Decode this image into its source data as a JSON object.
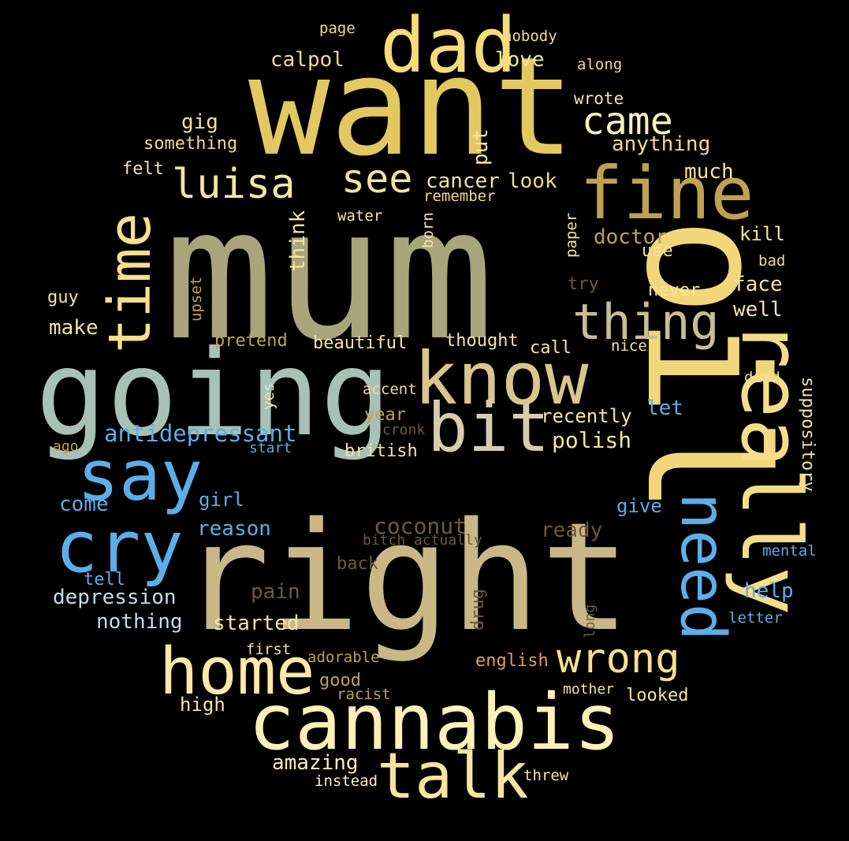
{
  "colors": {
    "background": "#000000",
    "sage": "#a8a57c",
    "gold": "#e2c860",
    "pale_yellow": "#f6e4a0",
    "mint": "#a7c1b7",
    "tan": "#c9b886",
    "blue": "#5caee8",
    "light_blue": "#c4dcef",
    "brown": "#6e5a3a",
    "orange": "#e39a5a"
  },
  "words": [
    {
      "text": "mum",
      "color": "#a8a57c"
    },
    {
      "text": "want",
      "color": "#e2c860"
    },
    {
      "text": "right",
      "color": "#c9b886"
    },
    {
      "text": "going",
      "color": "#a7c1b7"
    },
    {
      "text": "oil",
      "color": "#f2d67a"
    },
    {
      "text": "know",
      "color": "#d9c68c"
    },
    {
      "text": "cannabis",
      "color": "#fff0b8"
    },
    {
      "text": "really",
      "color": "#f3dd88"
    },
    {
      "text": "dad",
      "color": "#f6dc78"
    },
    {
      "text": "fine",
      "color": "#bfa152"
    },
    {
      "text": "cry",
      "color": "#5caee8"
    },
    {
      "text": "bit",
      "color": "#d8ccb0"
    },
    {
      "text": "say",
      "color": "#5caee8"
    },
    {
      "text": "home",
      "color": "#ffe8a8"
    },
    {
      "text": "talk",
      "color": "#f6e4a0"
    },
    {
      "text": "need",
      "color": "#5caee8"
    },
    {
      "text": "time",
      "color": "#f6e08c"
    },
    {
      "text": "thing",
      "color": "#c9bd93"
    },
    {
      "text": "wrong",
      "color": "#f6e08c"
    },
    {
      "text": "luisa",
      "color": "#f6e4a0"
    },
    {
      "text": "came",
      "color": "#fff0b8"
    },
    {
      "text": "see",
      "color": "#f6e4a0"
    },
    {
      "text": "antidepressant",
      "color": "#5caee8"
    },
    {
      "text": "calpol",
      "color": "#f2da92"
    },
    {
      "text": "love",
      "color": "#f6e4a0"
    },
    {
      "text": "anything",
      "color": "#f2da92"
    },
    {
      "text": "cancer",
      "color": "#f6e4a0"
    },
    {
      "text": "look",
      "color": "#f2da92"
    },
    {
      "text": "much",
      "color": "#f6e4a0"
    },
    {
      "text": "gig",
      "color": "#f6e4a0"
    },
    {
      "text": "something",
      "color": "#f2da92"
    },
    {
      "text": "felt",
      "color": "#f6e4a0"
    },
    {
      "text": "put",
      "color": "#f6e4a0"
    },
    {
      "text": "page",
      "color": "#f2da92"
    },
    {
      "text": "nobody",
      "color": "#f2da92"
    },
    {
      "text": "along",
      "color": "#f2da92"
    },
    {
      "text": "wrote",
      "color": "#f6e4a0"
    },
    {
      "text": "remember",
      "color": "#f2da92"
    },
    {
      "text": "water",
      "color": "#f6e4a0"
    },
    {
      "text": "born",
      "color": "#f6e4a0"
    },
    {
      "text": "paper",
      "color": "#f6e4a0"
    },
    {
      "text": "doctor",
      "color": "#bfa152"
    },
    {
      "text": "kill",
      "color": "#f6e4a0"
    },
    {
      "text": "use",
      "color": "#f6e4a0"
    },
    {
      "text": "bad",
      "color": "#f2da92"
    },
    {
      "text": "think",
      "color": "#f6e4a0"
    },
    {
      "text": "upset",
      "color": "#bfa152"
    },
    {
      "text": "try",
      "color": "#6e5a3a"
    },
    {
      "text": "never",
      "color": "#f6e4a0"
    },
    {
      "text": "face",
      "color": "#f6e4a0"
    },
    {
      "text": "well",
      "color": "#f6e4a0"
    },
    {
      "text": "guy",
      "color": "#f6e4a0"
    },
    {
      "text": "make",
      "color": "#f6e4a0"
    },
    {
      "text": "pretend",
      "color": "#bfa152"
    },
    {
      "text": "beautiful",
      "color": "#f6e4a0"
    },
    {
      "text": "thought",
      "color": "#f6e4a0"
    },
    {
      "text": "call",
      "color": "#f6e4a0"
    },
    {
      "text": "nice",
      "color": "#f6e4a0"
    },
    {
      "text": "died",
      "color": "#f2da92"
    },
    {
      "text": "accent",
      "color": "#f2da92"
    },
    {
      "text": "yes",
      "color": "#f6e4a0"
    },
    {
      "text": "year",
      "color": "#bfa152"
    },
    {
      "text": "recently",
      "color": "#f6e4a0"
    },
    {
      "text": "let",
      "color": "#5caee8"
    },
    {
      "text": "suppository",
      "color": "#f6e4a0"
    },
    {
      "text": "cronk",
      "color": "#6e5a3a"
    },
    {
      "text": "polish",
      "color": "#f6e4a0"
    },
    {
      "text": "ago",
      "color": "#bfa152"
    },
    {
      "text": "start",
      "color": "#5caee8"
    },
    {
      "text": "british",
      "color": "#f6e4a0"
    },
    {
      "text": "come",
      "color": "#5caee8"
    },
    {
      "text": "girl",
      "color": "#5caee8"
    },
    {
      "text": "give",
      "color": "#5caee8"
    },
    {
      "text": "reason",
      "color": "#5caee8"
    },
    {
      "text": "coconut",
      "color": "#6e5a3a"
    },
    {
      "text": "ready",
      "color": "#6e5a3a"
    },
    {
      "text": "bitch",
      "color": "#6e5a3a"
    },
    {
      "text": "actually",
      "color": "#6e5a3a"
    },
    {
      "text": "mental",
      "color": "#5caee8"
    },
    {
      "text": "tell",
      "color": "#5caee8"
    },
    {
      "text": "back",
      "color": "#6e5a3a"
    },
    {
      "text": "depression",
      "color": "#c4dcef"
    },
    {
      "text": "pain",
      "color": "#6e5a3a"
    },
    {
      "text": "help",
      "color": "#5caee8"
    },
    {
      "text": "drug",
      "color": "#6e5a3a"
    },
    {
      "text": "long",
      "color": "#6e5a3a"
    },
    {
      "text": "letter",
      "color": "#5caee8"
    },
    {
      "text": "nothing",
      "color": "#c4dcef"
    },
    {
      "text": "started",
      "color": "#f6e4a0"
    },
    {
      "text": "first",
      "color": "#f6e4a0"
    },
    {
      "text": "adorable",
      "color": "#bfa152"
    },
    {
      "text": "english",
      "color": "#e39a5a"
    },
    {
      "text": "good",
      "color": "#bfa152"
    },
    {
      "text": "racist",
      "color": "#bfa152"
    },
    {
      "text": "mother",
      "color": "#f6e4a0"
    },
    {
      "text": "looked",
      "color": "#f6e4a0"
    },
    {
      "text": "high",
      "color": "#f6e4a0"
    },
    {
      "text": "amazing",
      "color": "#fff0b8"
    },
    {
      "text": "instead",
      "color": "#fff0b8"
    },
    {
      "text": "threw",
      "color": "#f6e4a0"
    }
  ]
}
